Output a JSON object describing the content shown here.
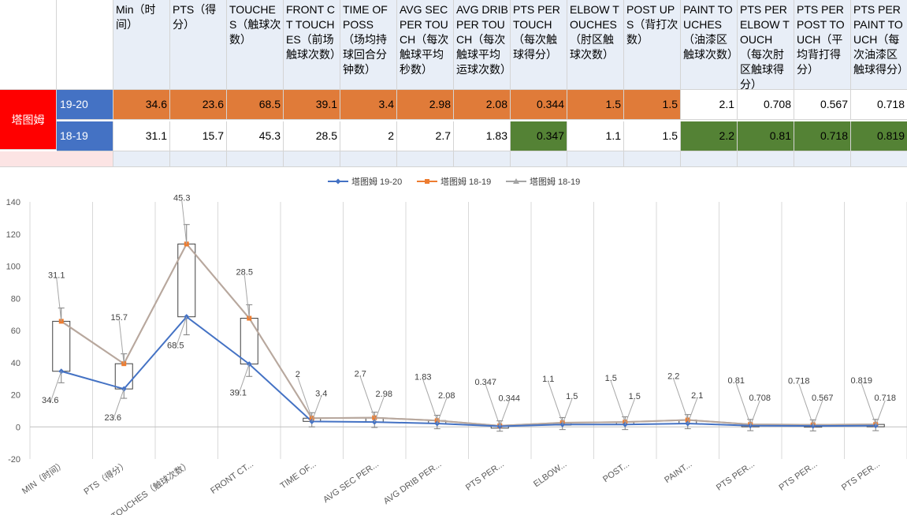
{
  "table": {
    "player": "塔图姆",
    "headers": [
      "Min（时间）",
      "PTS（得分）",
      "TOUCHES（触球次数）",
      "FRONT CT TOUCHES（前场触球次数）",
      "TIME OF POSS（场均持球回合分钟数）",
      "AVG SEC PER TOUCH（每次触球平均秒数）",
      "AVG DRIB PER TOUCH（每次触球平均运球次数）",
      "PTS PER TOUCH（每次触球得分）",
      "ELBOW TOUCHES（肘区触球次数）",
      "POST UPS（背打次数）",
      "PAINT TOUCHES（油漆区触球次数）",
      "PTS PER ELBOW TOUCH（每次肘区触球得分）",
      "PTS PER POST TOUCH（平均背打得分）",
      "PTS PER PAINT TOUCH（每次油漆区触球得分）"
    ],
    "rows": [
      {
        "season": "19-20",
        "values": [
          "34.6",
          "23.6",
          "68.5",
          "39.1",
          "3.4",
          "2.98",
          "2.08",
          "0.344",
          "1.5",
          "1.5",
          "2.1",
          "0.708",
          "0.567",
          "0.718"
        ]
      },
      {
        "season": "18-19",
        "values": [
          "31.1",
          "15.7",
          "45.3",
          "28.5",
          "2",
          "2.7",
          "1.83",
          "0.347",
          "1.1",
          "1.5",
          "2.2",
          "0.81",
          "0.718",
          "0.819"
        ]
      }
    ]
  },
  "colors": {
    "row1_fill": "#e07b39",
    "season_fill": "#4472c4",
    "player_fill": "#ff0000",
    "highlight_fill": "#548235",
    "light_fill": "#e8eef7",
    "series1": "#4472c4",
    "series2": "#ed7d31",
    "series3": "#a5a5a5",
    "series3_line": "#b8a89e"
  },
  "chart_data": {
    "type": "line",
    "categories": [
      "MIN（时间）",
      "PTS（得分）",
      "TOUCHES（触球次数）",
      "FRONT CT...",
      "TIME OF...",
      "AVG SEC PER...",
      "AVG DRIB PER...",
      "PTS PER...",
      "ELBOW...",
      "POST...",
      "PAINT...",
      "PTS PER...",
      "PTS PER...",
      "PTS PER..."
    ],
    "series": [
      {
        "name": "塔图姆 19-20",
        "values": [
          34.6,
          23.6,
          68.5,
          39.1,
          3.4,
          2.98,
          2.08,
          0.344,
          1.5,
          1.5,
          2.1,
          0.708,
          0.567,
          0.718
        ],
        "labels": [
          "34.6",
          "23.6",
          "68.5",
          "39.1",
          "3.4",
          "2.98",
          "2.08",
          "0.344",
          "1.5",
          "1.5",
          "2.1",
          "0.708",
          "0.567",
          "0.718"
        ]
      },
      {
        "name": "塔图姆 18-19",
        "values": [
          65.7,
          39.3,
          113.8,
          67.6,
          5.4,
          5.68,
          3.91,
          0.691,
          2.6,
          3.0,
          4.3,
          1.518,
          1.285,
          1.537
        ],
        "labels": [
          "31.1",
          "15.7",
          "45.3",
          "28.5",
          "2",
          "2.7",
          "1.83",
          "0.347",
          "1.1",
          "1.5",
          "2.2",
          "0.81",
          "0.718",
          "0.819"
        ]
      },
      {
        "name": "塔图姆 18-19",
        "values": [
          65.7,
          39.3,
          113.8,
          67.6,
          5.4,
          5.68,
          3.91,
          0.691,
          2.6,
          3.0,
          4.3,
          1.518,
          1.285,
          1.537
        ]
      }
    ],
    "ylim": [
      -20,
      140
    ],
    "yticks": [
      "-20",
      "0",
      "20",
      "40",
      "60",
      "80",
      "100",
      "120",
      "140"
    ],
    "grid": true,
    "legend": "top"
  }
}
